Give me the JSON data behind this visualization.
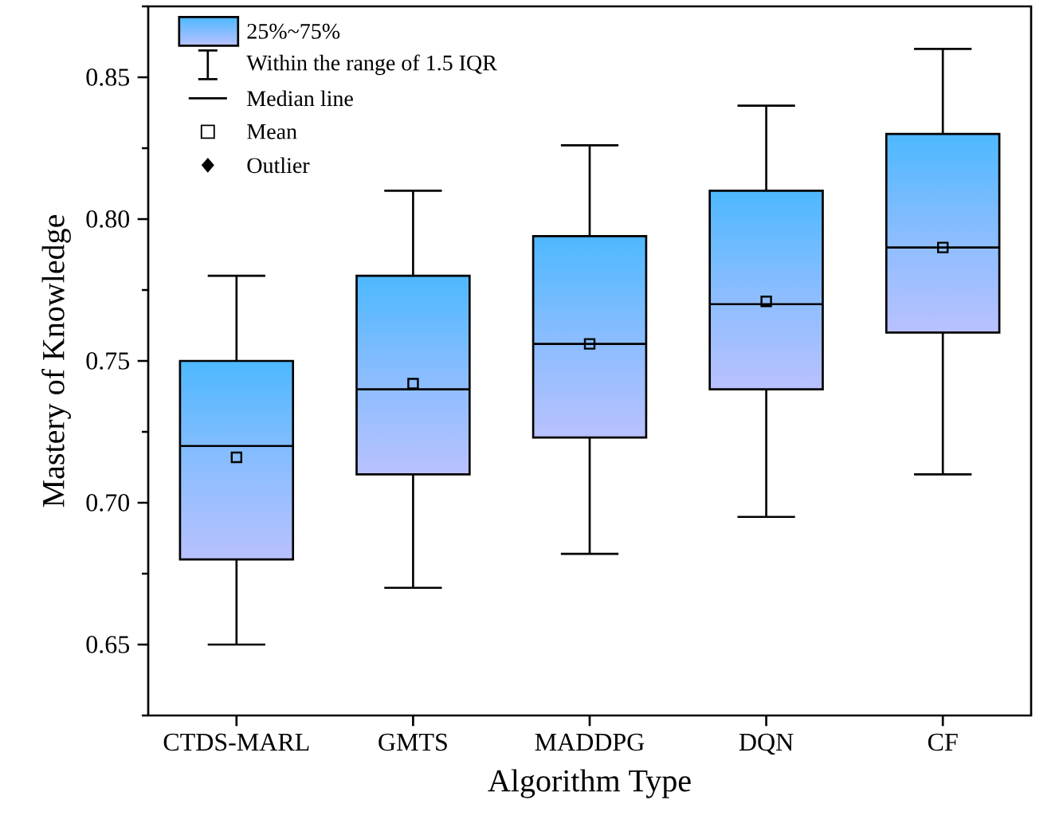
{
  "chart_data": {
    "type": "box",
    "xlabel": "Algorithm Type",
    "ylabel": "Mastery of Knowledge",
    "categories": [
      "CTDS-MARL",
      "GMTS",
      "MADDPG",
      "DQN",
      "CF"
    ],
    "ylim": [
      0.625,
      0.875
    ],
    "yticks": [
      {
        "value": 0.625,
        "label": null
      },
      0.65,
      {
        "value": 0.675,
        "label": null
      },
      {
        "value": 0.7,
        "label": "0.70"
      },
      {
        "value": 0.725,
        "label": null
      },
      0.75,
      {
        "value": 0.775,
        "label": null
      },
      {
        "value": 0.8,
        "label": "0.80"
      },
      {
        "value": 0.825,
        "label": null
      },
      0.85,
      {
        "value": 0.875,
        "label": null
      }
    ],
    "legend": "top left",
    "series": [
      {
        "name": "25%~75%",
        "color": "#4db8ff",
        "boxes": [
          {
            "low": 0.65,
            "q1": 0.68,
            "median": 0.72,
            "q3": 0.75,
            "high": 0.78,
            "mean": 0.716
          },
          {
            "low": 0.67,
            "q1": 0.71,
            "median": 0.74,
            "q3": 0.78,
            "high": 0.81,
            "mean": 0.742
          },
          {
            "low": 0.682,
            "q1": 0.723,
            "median": 0.756,
            "q3": 0.794,
            "high": 0.826,
            "mean": 0.756
          },
          {
            "low": 0.695,
            "q1": 0.74,
            "median": 0.77,
            "q3": 0.81,
            "high": 0.84,
            "mean": 0.771
          },
          {
            "low": 0.71,
            "q1": 0.76,
            "median": 0.79,
            "q3": 0.83,
            "high": 0.86,
            "mean": 0.79
          }
        ]
      }
    ],
    "annotations": [
      "Within the range of 1.5 IQR",
      "Median line",
      "Mean",
      "Outlier"
    ]
  }
}
